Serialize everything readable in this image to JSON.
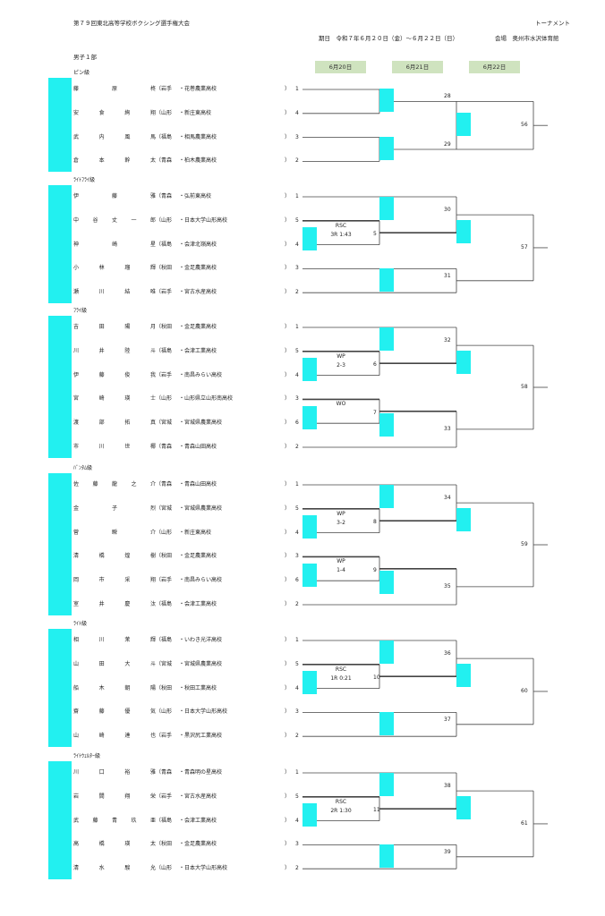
{
  "header": {
    "title": "第７９回東北高等学校ボクシング選手権大会",
    "doc_type": "トーナメント",
    "period": "期日　令和７年６月２０日（金）～６月２２日（日）",
    "venue": "会場　奥州市水沢体育館",
    "division": "男子１部"
  },
  "days": [
    "6月20日",
    "6月21日",
    "6月22日"
  ],
  "weight_classes": [
    {
      "name": "ピン級",
      "boxers": [
        {
          "name": [
            "藤",
            "原",
            "柊"
          ],
          "pref": "岩手",
          "school": "花巻農業高校",
          "slot": "1"
        },
        {
          "name": [
            "安",
            "食",
            "絢",
            "翔"
          ],
          "pref": "山形",
          "school": "新庄東高校",
          "slot": "4"
        },
        {
          "name": [
            "武",
            "内",
            "風",
            "馬"
          ],
          "pref": "福島",
          "school": "相馬農業高校",
          "slot": "3"
        },
        {
          "name": [
            "倉",
            "本",
            "幹",
            "太"
          ],
          "pref": "青森",
          "school": "柏木農業高校",
          "slot": "2"
        }
      ],
      "prelim": [],
      "semis": [
        "28",
        "29"
      ],
      "final": "56"
    },
    {
      "name": "ﾗｲﾄﾌﾗｲ級",
      "boxers": [
        {
          "name": [
            "伊",
            "藤",
            "雅"
          ],
          "pref": "青森",
          "school": "弘前東高校",
          "slot": "1"
        },
        {
          "name": [
            "中",
            "谷",
            "丈",
            "一",
            "郎"
          ],
          "pref": "山形",
          "school": "日本大学山形高校",
          "slot": "5"
        },
        {
          "name": [
            "神",
            "崎",
            "星"
          ],
          "pref": "福島",
          "school": "会津北嶺高校",
          "slot": "4"
        },
        {
          "name": [
            "小",
            "林",
            "瑠",
            "輝"
          ],
          "pref": "秋田",
          "school": "金足農業高校",
          "slot": "3"
        },
        {
          "name": [
            "瀬",
            "川",
            "結",
            "唯"
          ],
          "pref": "岩手",
          "school": "宮古水産高校",
          "slot": "2"
        }
      ],
      "prelim": [
        {
          "no": "5",
          "result": [
            "RSC",
            "3R 1:43"
          ]
        }
      ],
      "semis": [
        "30",
        "31"
      ],
      "final": "57"
    },
    {
      "name": "ﾌﾗｲ級",
      "boxers": [
        {
          "name": [
            "吉",
            "田",
            "陽",
            "月"
          ],
          "pref": "秋田",
          "school": "金足農業高校",
          "slot": "1"
        },
        {
          "name": [
            "川",
            "井",
            "陸",
            "斗"
          ],
          "pref": "福島",
          "school": "会津工業高校",
          "slot": "5"
        },
        {
          "name": [
            "伊",
            "藤",
            "俊",
            "我"
          ],
          "pref": "岩手",
          "school": "南昌みらい高校",
          "slot": "4"
        },
        {
          "name": [
            "宮",
            "崎",
            "瑛",
            "士"
          ],
          "pref": "山形",
          "school": "山形県立山形南高校",
          "slot": "3"
        },
        {
          "name": [
            "渡",
            "部",
            "拓",
            "真"
          ],
          "pref": "宮城",
          "school": "宮城県農業高校",
          "slot": "6"
        },
        {
          "name": [
            "市",
            "川",
            "世",
            "椰"
          ],
          "pref": "青森",
          "school": "青森山田高校",
          "slot": "2"
        }
      ],
      "prelim": [
        {
          "no": "6",
          "result": [
            "WP",
            "2-3"
          ]
        },
        {
          "no": "7",
          "result": [
            "WO",
            ""
          ]
        }
      ],
      "semis": [
        "32",
        "33"
      ],
      "final": "58"
    },
    {
      "name": "ﾊﾞﾝﾀﾑ級",
      "boxers": [
        {
          "name": [
            "佐",
            "藤",
            "龍",
            "之",
            "介"
          ],
          "pref": "青森",
          "school": "青森山田高校",
          "slot": "1"
        },
        {
          "name": [
            "金",
            "子",
            "烈"
          ],
          "pref": "宮城",
          "school": "宮城県農業高校",
          "slot": "5"
        },
        {
          "name": [
            "菅",
            "瞬",
            "介"
          ],
          "pref": "山形",
          "school": "新庄東高校",
          "slot": "4"
        },
        {
          "name": [
            "清",
            "橋",
            "煌",
            "樹"
          ],
          "pref": "秋田",
          "school": "金足農業高校",
          "slot": "3"
        },
        {
          "name": [
            "岡",
            "市",
            "采",
            "翔"
          ],
          "pref": "岩手",
          "school": "南昌みらい高校",
          "slot": "6"
        },
        {
          "name": [
            "室",
            "井",
            "慶",
            "汰"
          ],
          "pref": "福島",
          "school": "会津工業高校",
          "slot": "2"
        }
      ],
      "prelim": [
        {
          "no": "8",
          "result": [
            "WP",
            "3-2"
          ]
        },
        {
          "no": "9",
          "result": [
            "WP",
            "1-4"
          ]
        }
      ],
      "semis": [
        "34",
        "35"
      ],
      "final": "59"
    },
    {
      "name": "ﾗｲﾄ級",
      "boxers": [
        {
          "name": [
            "相",
            "川",
            "茉",
            "輝"
          ],
          "pref": "福島",
          "school": "いわき光洋高校",
          "slot": "1"
        },
        {
          "name": [
            "山",
            "田",
            "大",
            "斗"
          ],
          "pref": "宮城",
          "school": "宮城県農業高校",
          "slot": "5"
        },
        {
          "name": [
            "船",
            "木",
            "朝",
            "陽"
          ],
          "pref": "秋田",
          "school": "秋田工業高校",
          "slot": "4"
        },
        {
          "name": [
            "齋",
            "藤",
            "優",
            "気"
          ],
          "pref": "山形",
          "school": "日本大学山形高校",
          "slot": "3"
        },
        {
          "name": [
            "山",
            "崎",
            "達",
            "也"
          ],
          "pref": "岩手",
          "school": "黒沢尻工業高校",
          "slot": "2"
        }
      ],
      "prelim": [
        {
          "no": "10",
          "result": [
            "RSC",
            "1R 0:21"
          ]
        }
      ],
      "semis": [
        "36",
        "37"
      ],
      "final": "60"
    },
    {
      "name": "ﾗｲﾄｳｪﾙﾀｰ級",
      "boxers": [
        {
          "name": [
            "川",
            "口",
            "裕",
            "雅"
          ],
          "pref": "青森",
          "school": "青森明の星高校",
          "slot": "1"
        },
        {
          "name": [
            "岩",
            "間",
            "翔",
            "栄"
          ],
          "pref": "岩手",
          "school": "宮古水産高校",
          "slot": "5"
        },
        {
          "name": [
            "武",
            "藤",
            "青",
            "玖",
            "亜"
          ],
          "pref": "福島",
          "school": "会津工業高校",
          "slot": "4"
        },
        {
          "name": [
            "高",
            "橋",
            "瑛",
            "太"
          ],
          "pref": "秋田",
          "school": "金足農業高校",
          "slot": "3"
        },
        {
          "name": [
            "清",
            "水",
            "駿",
            "允"
          ],
          "pref": "山形",
          "school": "日本大学山形高校",
          "slot": "2"
        }
      ],
      "prelim": [
        {
          "no": "11",
          "result": [
            "RSC",
            "2R 1:30"
          ]
        }
      ],
      "semis": [
        "38",
        "39"
      ],
      "final": "61"
    }
  ],
  "colors": {
    "accent_cyan": "#22f0f0",
    "day_box": "#cfe3bf"
  }
}
